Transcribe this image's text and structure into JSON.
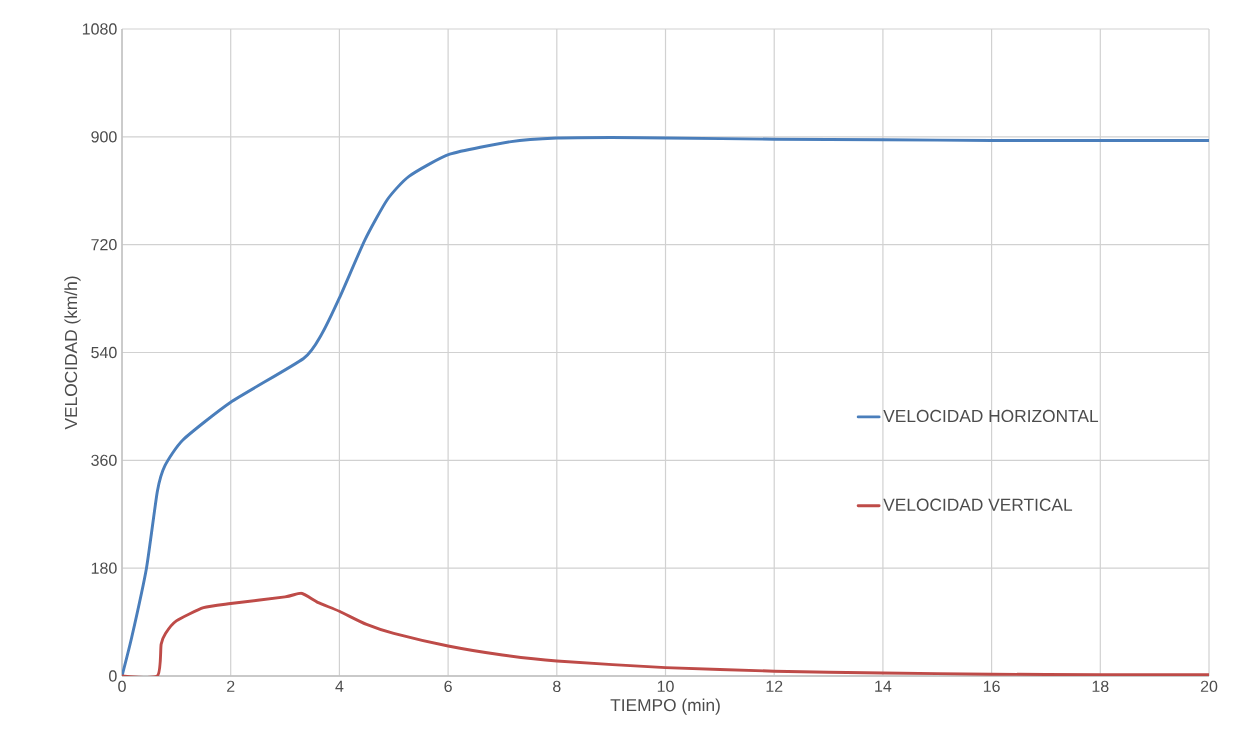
{
  "chart_data": {
    "type": "line",
    "xlabel": "TIEMPO (min)",
    "ylabel": "VELOCIDAD (km/h)",
    "xlim": [
      0,
      20
    ],
    "ylim": [
      0,
      1080
    ],
    "xticks": [
      0,
      2,
      4,
      6,
      8,
      10,
      12,
      14,
      16,
      18,
      20
    ],
    "yticks": [
      0,
      180,
      360,
      540,
      720,
      900,
      1080
    ],
    "grid": true,
    "legend": "right",
    "marker": "none",
    "line_style": "solid",
    "series": [
      {
        "name": "VELOCIDAD HORIZONTAL",
        "color": "#4a7ebb",
        "x": [
          0,
          0.18,
          0.45,
          0.65,
          0.79,
          1.12,
          2,
          3.34,
          3.67,
          4,
          4.47,
          4.88,
          5.28,
          6.03,
          7.16,
          8,
          9,
          10,
          12,
          14,
          16,
          18,
          20
        ],
        "values": [
          0,
          65,
          180,
          308,
          351,
          394,
          457,
          530,
          570,
          631,
          728,
          795,
          834,
          871,
          892,
          898,
          899,
          898,
          896,
          895,
          894,
          894,
          894
        ]
      },
      {
        "name": "VELOCIDAD VERTICAL",
        "color": "#be4b48",
        "x": [
          0,
          0.65,
          0.72,
          0.8,
          1,
          1.5,
          2,
          3,
          3.3,
          3.6,
          4,
          4.5,
          5,
          6,
          7,
          8,
          10,
          12,
          14,
          16,
          18,
          20
        ],
        "values": [
          0,
          0,
          53,
          71,
          92,
          114,
          121,
          132,
          138,
          123,
          108,
          86,
          71,
          50,
          35,
          25,
          14,
          8,
          5,
          3,
          2,
          2
        ]
      }
    ]
  }
}
